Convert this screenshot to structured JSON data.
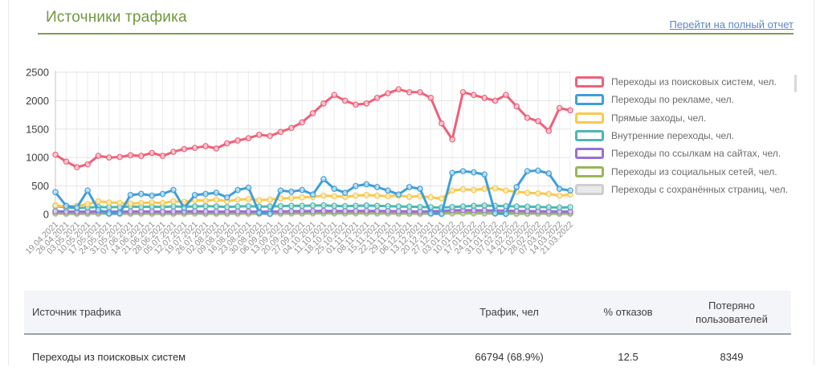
{
  "header": {
    "title": "Источники трафика",
    "report_link": "Перейти на полный отчет"
  },
  "chart_data": {
    "type": "line",
    "title": "Источники трафика",
    "xlabel": "",
    "ylabel": "",
    "ylim": [
      0,
      2500
    ],
    "yticks": [
      0,
      500,
      1000,
      1500,
      2000,
      2500
    ],
    "grid": true,
    "legend_position": "right",
    "marker": "open-circle",
    "categories": [
      "19.04.2021",
      "26.04.2021",
      "03.05.2021",
      "10.05.2021",
      "17.05.2021",
      "24.05.2021",
      "31.05.2021",
      "07.06.2021",
      "14.06.2021",
      "21.06.2021",
      "28.06.2021",
      "05.07.2021",
      "12.07.2021",
      "19.07.2021",
      "26.07.2021",
      "02.08.2021",
      "09.08.2021",
      "16.08.2021",
      "23.08.2021",
      "30.08.2021",
      "06.09.2021",
      "13.09.2021",
      "20.09.2021",
      "27.09.2021",
      "04.10.2021",
      "11.10.2021",
      "18.10.2021",
      "25.10.2021",
      "01.11.2021",
      "08.11.2021",
      "15.11.2021",
      "22.11.2021",
      "29.11.2021",
      "06.12.2021",
      "13.12.2021",
      "20.12.2021",
      "27.12.2021",
      "03.01.2022",
      "10.01.2022",
      "17.01.2022",
      "24.01.2022",
      "31.01.2022",
      "07.02.2022",
      "14.02.2022",
      "21.02.2022",
      "28.02.2022",
      "07.03.2022",
      "14.03.2022",
      "21.03.2022"
    ],
    "series": [
      {
        "name": "Переходы из поисковых систем, чел.",
        "color": "#ef6079",
        "values": [
          1050,
          930,
          830,
          880,
          1030,
          1000,
          1010,
          1040,
          1030,
          1080,
          1030,
          1100,
          1150,
          1170,
          1200,
          1160,
          1250,
          1300,
          1340,
          1400,
          1380,
          1450,
          1520,
          1620,
          1780,
          1950,
          2100,
          2000,
          1930,
          1950,
          2050,
          2130,
          2200,
          2150,
          2150,
          2050,
          1600,
          1320,
          2150,
          2100,
          2050,
          2000,
          2100,
          1900,
          1700,
          1640,
          1470,
          1870,
          1830
        ]
      },
      {
        "name": "Переходы по рекламе, чел.",
        "color": "#3f9fd8",
        "values": [
          390,
          150,
          120,
          420,
          80,
          15,
          20,
          340,
          360,
          330,
          360,
          430,
          110,
          340,
          360,
          380,
          300,
          430,
          470,
          30,
          10,
          420,
          400,
          430,
          350,
          620,
          450,
          380,
          500,
          530,
          480,
          420,
          350,
          480,
          450,
          20,
          10,
          730,
          760,
          740,
          700,
          20,
          10,
          480,
          760,
          770,
          720,
          450,
          420
        ]
      },
      {
        "name": "Прямые заходы, чел.",
        "color": "#f9c94f",
        "values": [
          160,
          140,
          150,
          180,
          230,
          210,
          200,
          190,
          200,
          210,
          200,
          230,
          220,
          250,
          240,
          260,
          230,
          260,
          270,
          250,
          260,
          280,
          290,
          300,
          310,
          330,
          320,
          310,
          330,
          340,
          330,
          320,
          330,
          310,
          320,
          300,
          280,
          420,
          440,
          430,
          450,
          460,
          420,
          400,
          380,
          370,
          360,
          330,
          350
        ]
      },
      {
        "name": "Внутренние переходы, чел.",
        "color": "#4db8b0",
        "values": [
          150,
          120,
          110,
          120,
          130,
          125,
          130,
          140,
          130,
          135,
          130,
          140,
          135,
          140,
          145,
          140,
          130,
          140,
          145,
          135,
          140,
          145,
          150,
          150,
          155,
          160,
          150,
          145,
          150,
          155,
          150,
          145,
          140,
          135,
          130,
          125,
          120,
          130,
          140,
          150,
          155,
          150,
          145,
          140,
          135,
          130,
          125,
          120,
          125
        ]
      },
      {
        "name": "Переходы по ссылкам на сайтах, чел.",
        "color": "#9a6fd8",
        "values": [
          55,
          50,
          48,
          50,
          52,
          50,
          48,
          50,
          52,
          50,
          48,
          50,
          52,
          55,
          50,
          48,
          50,
          52,
          50,
          48,
          50,
          52,
          55,
          58,
          60,
          62,
          60,
          58,
          60,
          62,
          60,
          58,
          55,
          52,
          50,
          55,
          60,
          70,
          75,
          72,
          70,
          68,
          65,
          60,
          58,
          55,
          52,
          50,
          50
        ]
      },
      {
        "name": "Переходы из социальных сетей, чел.",
        "color": "#98b75a",
        "values": [
          25,
          20,
          18,
          20,
          22,
          20,
          18,
          20,
          22,
          20,
          18,
          20,
          22,
          25,
          20,
          18,
          20,
          22,
          20,
          18,
          20,
          22,
          25,
          25,
          28,
          30,
          28,
          25,
          28,
          30,
          28,
          25,
          22,
          20,
          20,
          22,
          25,
          30,
          32,
          30,
          28,
          25,
          22,
          20,
          20,
          22,
          20,
          18,
          20
        ]
      },
      {
        "name": "Переходы с сохранённых страниц, чел.",
        "color": "#cfcfcf",
        "fill": "#e9e9e9",
        "values": [
          8,
          5,
          4,
          5,
          6,
          5,
          4,
          5,
          6,
          5,
          4,
          5,
          6,
          8,
          5,
          4,
          5,
          6,
          5,
          4,
          5,
          6,
          8,
          8,
          10,
          10,
          8,
          8,
          10,
          10,
          8,
          8,
          6,
          5,
          5,
          6,
          8,
          10,
          12,
          10,
          8,
          8,
          6,
          5,
          5,
          6,
          5,
          4,
          5
        ]
      }
    ]
  },
  "table": {
    "headers": [
      "Источник трафика",
      "Трафик, чел",
      "% отказов",
      "Потеряно пользователей"
    ],
    "rows": [
      {
        "source": "Переходы из поисковых систем",
        "traffic": "66794 (68.9%)",
        "bounce": "12.5",
        "lost": "8349"
      }
    ]
  },
  "colors": {
    "title": "#70993d",
    "separator": "#7c9f50",
    "link": "#5e87c5",
    "table_header_bg": "#f4f5f8",
    "card_border": "#e7e9ee"
  }
}
